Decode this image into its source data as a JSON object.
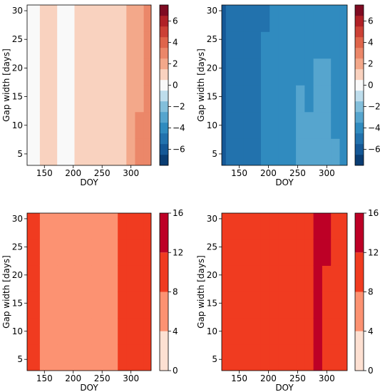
{
  "chart_data": [
    {
      "type": "heatmap",
      "panel": "top-left",
      "xlabel": "DOY",
      "ylabel": "Gap width [days]",
      "xlim": [
        120,
        335
      ],
      "ylim": [
        3,
        31
      ],
      "xticks": [
        150,
        200,
        250,
        300
      ],
      "yticks": [
        5,
        10,
        15,
        20,
        25,
        30
      ],
      "colormap": "diverging-blue-white-red",
      "colorbar": {
        "ticks": [
          -6,
          -4,
          -2,
          0,
          2,
          4,
          6
        ],
        "range": [
          -7.5,
          7.5
        ]
      },
      "x": [
        120,
        135,
        150,
        165,
        180,
        195,
        210,
        225,
        240,
        255,
        270,
        285,
        300,
        315,
        330
      ],
      "values_at_bottom": [
        0.2,
        0.5,
        0.9,
        1.1,
        0.5,
        0.3,
        0.8,
        0.6,
        0.9,
        1.0,
        1.2,
        1.4,
        1.9,
        2.6,
        2.9
      ],
      "values_at_top": [
        -0.2,
        0.3,
        0.6,
        0.8,
        0.4,
        0.3,
        0.6,
        0.5,
        0.8,
        0.9,
        1.1,
        1.3,
        1.5,
        2.3,
        2.8
      ]
    },
    {
      "type": "heatmap",
      "panel": "top-right",
      "xlabel": "DOY",
      "ylabel": "Gap width [days]",
      "xlim": [
        120,
        335
      ],
      "ylim": [
        3,
        31
      ],
      "xticks": [
        150,
        200,
        250,
        300
      ],
      "yticks": [
        5,
        10,
        15,
        20,
        25,
        30
      ],
      "colormap": "diverging-blue-white-red",
      "colorbar": {
        "ticks": [
          -6,
          -4,
          -2,
          0,
          2,
          4,
          6
        ],
        "range": [
          -7.5,
          7.5
        ]
      },
      "x": [
        120,
        135,
        150,
        165,
        180,
        195,
        210,
        225,
        240,
        255,
        270,
        285,
        300,
        315,
        330
      ],
      "values_at_bottom": [
        -5.8,
        -5.2,
        -4.9,
        -4.8,
        -4.6,
        -4.2,
        -4.0,
        -3.8,
        -3.6,
        -3.3,
        -3.4,
        -3.2,
        -3.0,
        -3.4,
        -3.9
      ],
      "values_at_top": [
        -5.8,
        -5.4,
        -5.0,
        -4.9,
        -4.8,
        -4.6,
        -4.0,
        -3.9,
        -3.9,
        -3.7,
        -3.8,
        -3.7,
        -3.7,
        -3.9,
        -4.4
      ]
    },
    {
      "type": "heatmap",
      "panel": "bottom-left",
      "xlabel": "DOY",
      "ylabel": "Gap width [days]",
      "xlim": [
        120,
        335
      ],
      "ylim": [
        3,
        31
      ],
      "xticks": [
        150,
        200,
        250,
        300
      ],
      "yticks": [
        5,
        10,
        15,
        20,
        25,
        30
      ],
      "colormap": "sequential-reds",
      "colorbar": {
        "ticks": [
          0,
          4,
          8,
          12,
          16
        ],
        "range": [
          0,
          16
        ]
      },
      "x": [
        120,
        135,
        150,
        165,
        180,
        195,
        210,
        225,
        240,
        255,
        270,
        285,
        300,
        315,
        330
      ],
      "values_at_bottom": [
        9,
        9,
        6,
        6,
        6,
        6,
        6,
        6,
        6,
        6,
        6,
        10,
        10,
        9,
        10
      ],
      "values_at_top": [
        10,
        10,
        6,
        6,
        6,
        6,
        6,
        6,
        6,
        6,
        6,
        10,
        10,
        10,
        10
      ]
    },
    {
      "type": "heatmap",
      "panel": "bottom-right",
      "xlabel": "DOY",
      "ylabel": "Gap width [days]",
      "xlim": [
        120,
        335
      ],
      "ylim": [
        3,
        31
      ],
      "xticks": [
        150,
        200,
        250,
        300
      ],
      "yticks": [
        5,
        10,
        15,
        20,
        25,
        30
      ],
      "colormap": "sequential-reds",
      "colorbar": {
        "ticks": [
          0,
          4,
          8,
          12,
          16
        ],
        "range": [
          0,
          16
        ]
      },
      "x": [
        120,
        135,
        150,
        165,
        180,
        195,
        210,
        225,
        240,
        255,
        270,
        285,
        300,
        315,
        330
      ],
      "values_at_bottom": [
        11,
        11,
        11,
        11,
        11,
        11,
        11,
        11,
        11,
        11,
        11,
        13,
        10,
        11,
        11
      ],
      "values_at_top": [
        10,
        10,
        10,
        10,
        10,
        10,
        10,
        10,
        10,
        10,
        10,
        13,
        13,
        10,
        10
      ]
    }
  ]
}
